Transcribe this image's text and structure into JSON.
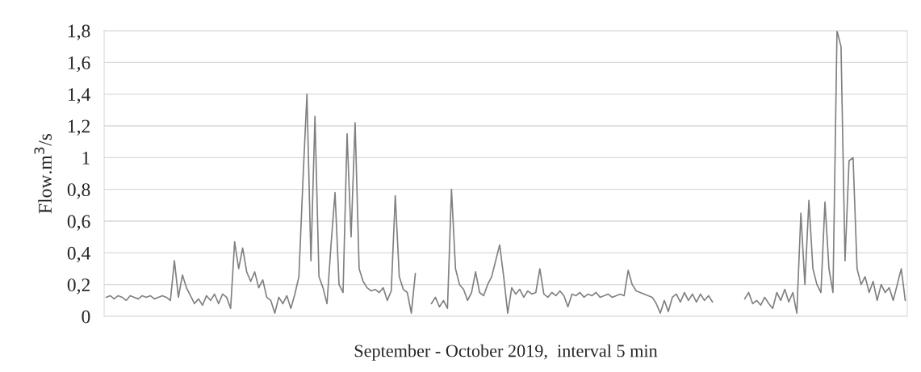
{
  "chart_data": {
    "type": "line",
    "xlabel": "September - October 2019,  interval 5 min",
    "ylabel": "Flow.m$^{3}$/s",
    "categories": [
      null,
      null,
      null,
      null,
      null,
      null,
      null,
      null,
      null,
      null,
      null,
      null,
      null,
      null,
      null,
      null,
      null,
      null,
      null,
      null,
      null,
      null,
      null,
      null,
      null,
      null,
      null,
      null,
      null,
      null,
      null,
      null,
      null,
      null,
      null,
      null,
      null,
      null,
      null,
      null,
      null,
      null,
      null,
      null,
      null,
      null,
      null,
      null,
      null,
      null,
      null,
      null,
      null,
      null,
      null,
      null,
      null,
      null,
      null,
      null,
      null,
      null,
      null,
      null,
      null,
      null,
      null,
      null,
      null,
      null,
      null,
      null,
      null,
      null,
      null,
      null,
      null,
      null,
      null,
      null,
      null,
      null,
      null,
      null,
      null,
      null,
      null,
      null,
      null,
      null,
      null,
      null,
      null,
      null,
      null,
      null,
      null,
      null,
      null,
      null,
      null,
      null,
      null,
      null,
      null,
      null,
      null,
      null,
      null,
      null,
      null,
      null,
      null,
      null,
      null,
      null,
      null,
      null,
      null,
      null,
      null,
      null,
      null,
      null,
      null,
      null,
      null,
      null,
      null,
      null,
      null,
      null,
      null,
      null,
      null,
      null,
      null,
      null,
      null,
      null,
      null,
      null,
      null,
      null,
      null,
      null,
      null,
      null,
      null,
      null,
      null,
      null,
      null,
      null,
      null,
      null,
      null,
      null,
      null,
      null,
      null,
      null,
      null,
      null,
      null,
      null,
      null,
      null,
      null,
      null,
      null,
      null,
      null,
      null,
      null,
      null,
      null,
      null,
      null,
      null,
      null,
      null,
      null,
      null,
      null,
      null,
      null,
      null,
      null,
      null,
      null,
      null,
      null,
      null,
      null,
      null,
      null,
      null,
      null,
      null
    ],
    "series": [
      {
        "color": "#808080",
        "values": [
          0.12,
          0.13,
          0.11,
          0.13,
          0.12,
          0.1,
          0.13,
          0.12,
          0.11,
          0.13,
          0.12,
          0.13,
          0.11,
          0.12,
          0.13,
          0.12,
          0.1,
          0.35,
          0.12,
          0.26,
          0.18,
          0.13,
          0.08,
          0.11,
          0.07,
          0.13,
          0.1,
          0.14,
          0.08,
          0.14,
          0.12,
          0.05,
          0.47,
          0.3,
          0.43,
          0.28,
          0.22,
          0.28,
          0.18,
          0.23,
          0.12,
          0.1,
          0.02,
          0.12,
          0.08,
          0.13,
          0.05,
          0.14,
          0.25,
          0.85,
          1.4,
          0.35,
          1.26,
          0.25,
          0.18,
          0.08,
          0.45,
          0.78,
          0.2,
          0.15,
          1.15,
          0.5,
          1.22,
          0.3,
          0.22,
          0.18,
          0.16,
          0.17,
          0.15,
          0.18,
          0.1,
          0.16,
          0.76,
          0.25,
          0.17,
          0.15,
          0.02,
          0.27,
          null,
          null,
          null,
          0.08,
          0.12,
          0.06,
          0.1,
          0.05,
          0.8,
          0.3,
          0.2,
          0.17,
          0.1,
          0.15,
          0.28,
          0.15,
          0.13,
          0.2,
          0.25,
          0.35,
          0.45,
          0.25,
          0.02,
          0.18,
          0.14,
          0.17,
          0.12,
          0.16,
          0.14,
          0.15,
          0.3,
          0.14,
          0.12,
          0.15,
          0.13,
          0.16,
          0.13,
          0.06,
          0.14,
          0.13,
          0.15,
          0.12,
          0.14,
          0.13,
          0.15,
          0.12,
          0.13,
          0.14,
          0.12,
          0.13,
          0.14,
          0.13,
          0.29,
          0.2,
          0.16,
          0.15,
          0.14,
          0.13,
          0.12,
          0.08,
          0.02,
          0.1,
          0.03,
          0.12,
          0.14,
          0.09,
          0.15,
          0.1,
          0.14,
          0.09,
          0.14,
          0.1,
          0.13,
          0.09,
          null,
          null,
          null,
          null,
          null,
          null,
          null,
          0.11,
          0.15,
          0.08,
          0.1,
          0.07,
          0.12,
          0.08,
          0.05,
          0.15,
          0.1,
          0.17,
          0.09,
          0.15,
          0.02,
          0.65,
          0.2,
          0.73,
          0.3,
          0.2,
          0.15,
          0.72,
          0.3,
          0.15,
          1.8,
          1.7,
          0.35,
          0.98,
          1.0,
          0.3,
          0.2,
          0.25,
          0.15,
          0.22,
          0.1,
          0.2,
          0.15,
          0.18,
          0.1,
          0.2,
          0.3,
          0.1
        ]
      }
    ],
    "ylim": [
      0,
      1.8
    ],
    "yticks": [
      0,
      {
        "value": 0.2,
        "label": "0,2"
      },
      {
        "value": 0.4,
        "label": "0,4"
      },
      {
        "value": 0.6,
        "label": "0,6"
      },
      {
        "value": 0.8,
        "label": "0,8"
      },
      1,
      {
        "value": 1.2,
        "label": "1,2"
      },
      {
        "value": 1.4,
        "label": "1,4"
      },
      {
        "value": 1.6,
        "label": "1,6"
      },
      {
        "value": 1.8,
        "label": "1,8"
      }
    ],
    "grid": "y",
    "tick_labels": "y",
    "legend": false,
    "marker": "none",
    "line_style": "solid"
  }
}
